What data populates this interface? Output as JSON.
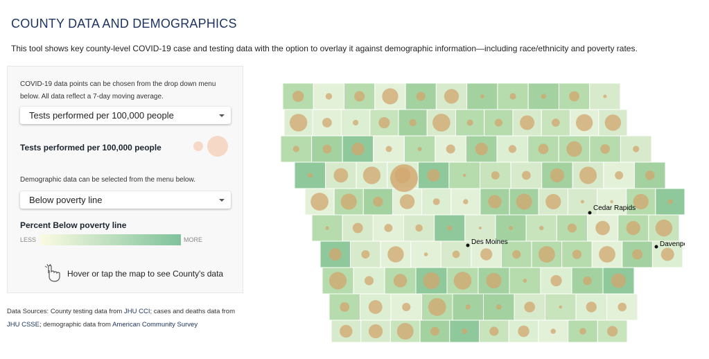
{
  "header": {
    "title": "COUNTY DATA AND DEMOGRAPHICS",
    "description": "This tool shows key county-level COVID-19 case and testing data with the option to overlay it against demographic information—including race/ethnicity and poverty rates."
  },
  "panel": {
    "intro": "COVID-19 data points can be chosen from the drop down menu below. All data reflect a 7-day moving average.",
    "metric_select": "Tests performed per 100,000 people",
    "metric_legend": "Tests performed per 100,000 people",
    "demo_intro": "Demographic data can be selected from the menu below.",
    "demo_select": "Below poverty line",
    "demo_legend": "Percent Below poverty line",
    "less": "LESS",
    "more": "MORE",
    "hover": "Hover or tap the map to see County's data"
  },
  "sources": {
    "prefix": "Data Sources: County testing data from ",
    "link1": "JHU CCI",
    "mid": "; cases and deaths data from ",
    "link2": "JHU CSSE",
    "mid2": "; demographic data from ",
    "link3": "American Community Survey"
  },
  "map": {
    "cities": [
      "Cedar Rapids",
      "Des Moines",
      "Davenport"
    ]
  }
}
